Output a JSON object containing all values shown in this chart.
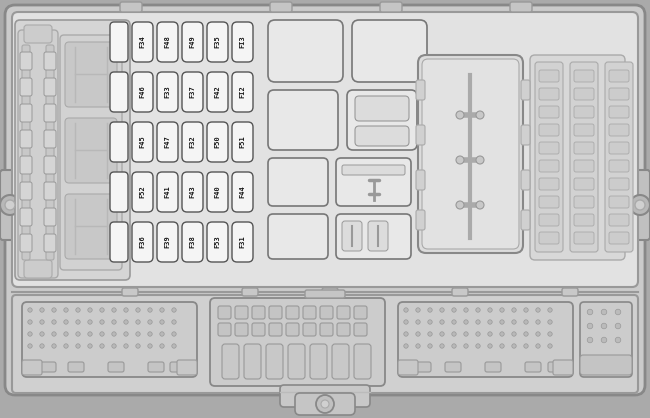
{
  "figsize": [
    6.5,
    4.18
  ],
  "dpi": 100,
  "bg": "#d4d4d4",
  "panel_bg": "#e2e2e2",
  "fuse_bg": "#f5f5f5",
  "fuse_ec": "#555555",
  "relay_bg": "#e8e8e8",
  "relay_ec": "#777777",
  "conn_bg": "#d8d8d8",
  "fuse_rows": [
    [
      "F34",
      "F48",
      "F49",
      "F35",
      "FI3"
    ],
    [
      "F46",
      "F33",
      "F37",
      "F42",
      "FI2"
    ],
    [
      "F45",
      "F47",
      "F32",
      "F50",
      "F51"
    ],
    [
      "F52",
      "F41",
      "F43",
      "F40",
      "F44"
    ],
    [
      "F36",
      "F39",
      "F38",
      "F53",
      "F31"
    ]
  ]
}
